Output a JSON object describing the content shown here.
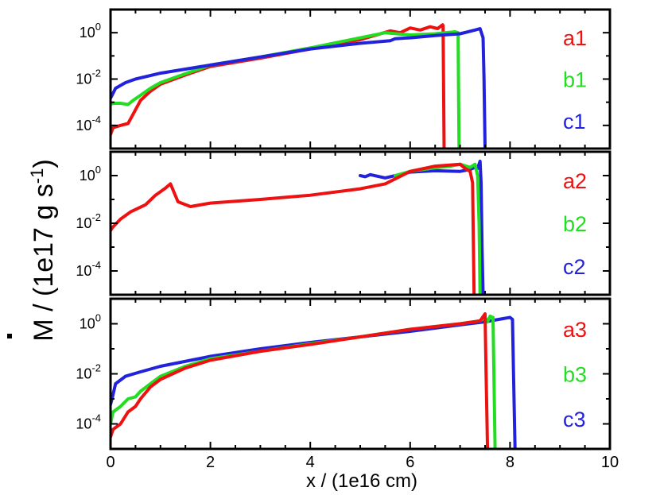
{
  "chart_data": {
    "type": "line",
    "y_title": {
      "prefix": "M / (1e17 g s",
      "superscript": "-1",
      "suffix": ")"
    },
    "x_axis": {
      "label": "x / (1e16 cm)",
      "lim": [
        0,
        10
      ],
      "ticks": [
        0,
        2,
        4,
        6,
        8,
        10
      ],
      "tick_labels": [
        "0",
        "2",
        "4",
        "6",
        "8",
        "10"
      ]
    },
    "y_axis": {
      "scale": "log",
      "lim": [
        1e-05,
        10
      ],
      "ticks": [
        {
          "value": 0.0001,
          "base": "10",
          "exp": "-4"
        },
        {
          "value": 0.01,
          "base": "10",
          "exp": "-2"
        },
        {
          "value": 1,
          "base": "10",
          "exp": "0"
        }
      ]
    },
    "colors": {
      "a": "#ee1111",
      "b": "#22dd22",
      "c": "#2222dd"
    },
    "panels": [
      {
        "id": "panel-1",
        "series": [
          {
            "name": "a1",
            "color": "#ee1111",
            "x": [
              0,
              0.05,
              0.2,
              0.35,
              0.45,
              0.6,
              0.8,
              1.0,
              1.5,
              2.0,
              3.0,
              4.0,
              5.0,
              5.6,
              5.8,
              6.0,
              6.2,
              6.4,
              6.55,
              6.65,
              6.66,
              6.68
            ],
            "y": [
              4e-05,
              8e-05,
              0.0001,
              0.00012,
              0.0003,
              0.0012,
              0.003,
              0.006,
              0.015,
              0.035,
              0.08,
              0.2,
              0.5,
              1.2,
              1.0,
              1.6,
              1.3,
              1.8,
              1.5,
              2.2,
              2.0,
              1e-05
            ]
          },
          {
            "name": "b1",
            "color": "#22dd22",
            "x": [
              0,
              0.05,
              0.2,
              0.35,
              0.45,
              0.6,
              0.8,
              1.0,
              1.5,
              2.0,
              3.0,
              4.0,
              5.0,
              5.5,
              6.0,
              6.5,
              6.9,
              6.96,
              6.98
            ],
            "y": [
              0.0008,
              0.0009,
              0.0009,
              0.0008,
              0.0012,
              0.002,
              0.004,
              0.007,
              0.017,
              0.04,
              0.09,
              0.22,
              0.6,
              1.0,
              0.8,
              0.9,
              1.1,
              1.0,
              1e-05
            ]
          },
          {
            "name": "c1",
            "color": "#2222dd",
            "x": [
              0,
              0.03,
              0.1,
              0.3,
              0.5,
              1.0,
              2.0,
              3.0,
              4.0,
              5.0,
              5.6,
              5.7,
              6.0,
              6.5,
              7.0,
              7.3,
              7.4,
              7.46,
              7.48,
              7.5
            ],
            "y": [
              0.0015,
              0.002,
              0.004,
              0.007,
              0.01,
              0.018,
              0.04,
              0.09,
              0.2,
              0.35,
              0.45,
              0.55,
              0.6,
              0.75,
              0.9,
              1.3,
              1.5,
              0.6,
              0.01,
              1e-05
            ]
          }
        ],
        "legend": [
          "a1",
          "b1",
          "c1"
        ]
      },
      {
        "id": "panel-2",
        "series": [
          {
            "name": "c2",
            "color": "#2222dd",
            "x": [
              5.0,
              5.1,
              5.2,
              5.5,
              6.0,
              6.5,
              7.0,
              7.2,
              7.3,
              7.35,
              7.4,
              7.42,
              7.44,
              7.46
            ],
            "y": [
              1.0,
              0.9,
              1.1,
              0.8,
              1.4,
              1.6,
              1.5,
              1.8,
              2.2,
              2.0,
              4.0,
              0.5,
              0.001,
              1e-05
            ]
          },
          {
            "name": "b2",
            "color": "#22dd22",
            "x": [
              5.7,
              6.0,
              6.4,
              6.8,
              7.0,
              7.2,
              7.3,
              7.35,
              7.38,
              7.4
            ],
            "y": [
              1.0,
              1.5,
              2.0,
              2.5,
              3.0,
              2.2,
              3.0,
              1.0,
              0.01,
              1e-05
            ]
          },
          {
            "name": "a2",
            "color": "#ee1111",
            "x": [
              0,
              0.05,
              0.2,
              0.4,
              0.7,
              0.9,
              1.1,
              1.2,
              1.35,
              1.6,
              2.0,
              3.0,
              4.0,
              5.0,
              5.5,
              6.0,
              6.5,
              7.0,
              7.1,
              7.2,
              7.25,
              7.28
            ],
            "y": [
              0.005,
              0.007,
              0.015,
              0.03,
              0.06,
              0.15,
              0.3,
              0.45,
              0.08,
              0.05,
              0.07,
              0.1,
              0.15,
              0.28,
              0.45,
              1.5,
              2.5,
              3.0,
              2.0,
              1.5,
              0.5,
              1e-05
            ]
          }
        ],
        "legend": [
          "a2",
          "b2",
          "c2"
        ]
      },
      {
        "id": "panel-3",
        "series": [
          {
            "name": "c3",
            "color": "#2222dd",
            "x": [
              0,
              0.03,
              0.1,
              0.3,
              0.6,
              1.0,
              2.0,
              3.0,
              4.0,
              5.0,
              6.0,
              7.0,
              7.5,
              8.0,
              8.05,
              8.07,
              8.1
            ],
            "y": [
              0.0006,
              0.001,
              0.004,
              0.008,
              0.012,
              0.02,
              0.05,
              0.1,
              0.18,
              0.3,
              0.5,
              0.9,
              1.2,
              1.8,
              1.5,
              0.01,
              1e-05
            ]
          },
          {
            "name": "b3",
            "color": "#22dd22",
            "x": [
              0,
              0.05,
              0.2,
              0.35,
              0.5,
              0.6,
              0.8,
              1.0,
              1.5,
              2.0,
              3.0,
              4.0,
              5.0,
              6.0,
              7.0,
              7.4,
              7.5,
              7.55,
              7.6,
              7.66,
              7.7
            ],
            "y": [
              0.0001,
              0.0003,
              0.0005,
              0.001,
              0.0012,
              0.002,
              0.004,
              0.008,
              0.02,
              0.04,
              0.08,
              0.16,
              0.3,
              0.6,
              1.0,
              1.3,
              1.8,
              1.2,
              2.0,
              1.8,
              1e-05
            ]
          },
          {
            "name": "a3",
            "color": "#ee1111",
            "x": [
              0,
              0.05,
              0.2,
              0.35,
              0.5,
              0.6,
              0.8,
              1.0,
              1.5,
              2.0,
              3.0,
              4.0,
              5.0,
              6.0,
              7.0,
              7.4,
              7.5,
              7.52,
              7.55
            ],
            "y": [
              3e-05,
              6e-05,
              0.0001,
              0.0003,
              0.0005,
              0.001,
              0.003,
              0.006,
              0.017,
              0.035,
              0.08,
              0.15,
              0.3,
              0.6,
              1.0,
              1.3,
              2.5,
              0.01,
              1e-05
            ]
          }
        ],
        "legend": [
          "a3",
          "b3",
          "c3"
        ]
      }
    ]
  }
}
